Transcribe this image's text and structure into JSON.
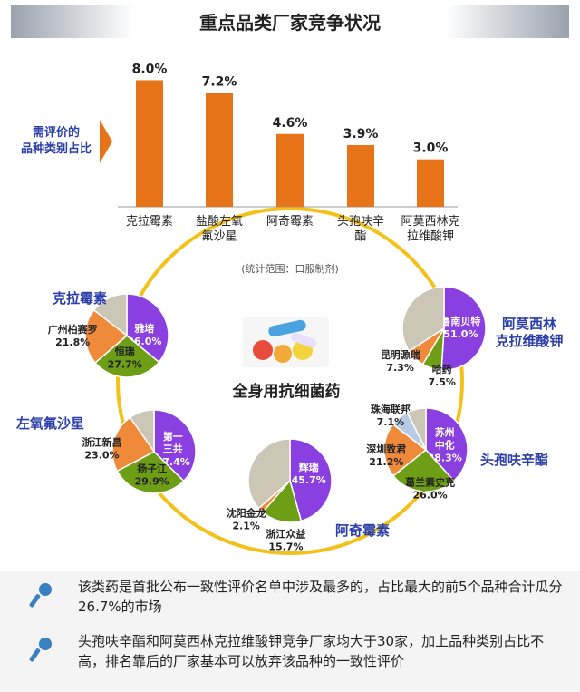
{
  "title": "重点品类厂家竞争状况",
  "side_label": [
    "需评价的",
    "品种类别占比"
  ],
  "scope_note": "(统计范围：口服制剂)",
  "center_label": "全身用抗细菌药",
  "colors": {
    "bar": "#e8741a",
    "ring": "#f2c21b",
    "purple": "#8a3fe0",
    "green": "#6e9e16",
    "orange": "#ef8a3a",
    "gray": "#cbc6b6",
    "blue": "#b8cbe6",
    "title_blue": "#2c3ea8"
  },
  "chart_data": [
    {
      "type": "bar",
      "categories": [
        "克拉霉素",
        "盐酸左氧\n氟沙星",
        "阿奇霉素",
        "头孢呋辛\n酯",
        "阿莫西林克\n拉维酸钾"
      ],
      "values": [
        8.0,
        7.2,
        4.6,
        3.9,
        3.0
      ],
      "labels": [
        "8.0%",
        "7.2%",
        "4.6%",
        "3.9%",
        "3.0%"
      ],
      "title": "",
      "xlabel": "",
      "ylabel": "",
      "ylim": [
        0,
        8.6
      ]
    },
    {
      "type": "pie",
      "title": "克拉霉素",
      "slices": [
        {
          "name": "雅培",
          "value": 36.0,
          "label": "36.0%",
          "color": "purple"
        },
        {
          "name": "恒瑞",
          "value": 27.7,
          "label": "27.7%",
          "color": "green"
        },
        {
          "name": "广州柏赛罗",
          "value": 21.8,
          "label": "21.8%",
          "color": "orange"
        },
        {
          "name": "",
          "value": 14.5,
          "label": "",
          "color": "gray"
        }
      ]
    },
    {
      "type": "pie",
      "title": "左氧氟沙星",
      "slices": [
        {
          "name": "第一\n三共",
          "value": 37.4,
          "label": "37.4%",
          "color": "purple"
        },
        {
          "name": "扬子江",
          "value": 29.9,
          "label": "29.9%",
          "color": "green"
        },
        {
          "name": "浙江新昌",
          "value": 23.0,
          "label": "23.0%",
          "color": "orange"
        },
        {
          "name": "",
          "value": 9.7,
          "label": "",
          "color": "gray"
        }
      ]
    },
    {
      "type": "pie",
      "title": "阿奇霉素",
      "slices": [
        {
          "name": "辉瑞",
          "value": 45.7,
          "label": "45.7%",
          "color": "purple"
        },
        {
          "name": "浙江众益",
          "value": 15.7,
          "label": "15.7%",
          "color": "green"
        },
        {
          "name": "沈阳金龙",
          "value": 2.1,
          "label": "2.1%",
          "color": "orange"
        },
        {
          "name": "",
          "value": 36.5,
          "label": "",
          "color": "gray"
        }
      ]
    },
    {
      "type": "pie",
      "title": "头孢呋辛酯",
      "slices": [
        {
          "name": "苏州\n中化",
          "value": 38.3,
          "label": "38.3%",
          "color": "purple"
        },
        {
          "name": "葛兰素史克",
          "value": 26.0,
          "label": "26.0%",
          "color": "green"
        },
        {
          "name": "深圳致君",
          "value": 21.2,
          "label": "21.2%",
          "color": "orange"
        },
        {
          "name": "珠海联邦",
          "value": 7.1,
          "label": "7.1%",
          "color": "blue"
        },
        {
          "name": "",
          "value": 7.4,
          "label": "",
          "color": "gray"
        }
      ]
    },
    {
      "type": "pie",
      "title": "阿莫西林\n克拉维酸钾",
      "slices": [
        {
          "name": "鲁南贝特",
          "value": 51.0,
          "label": "51.0%",
          "color": "purple"
        },
        {
          "name": "哈药",
          "value": 7.5,
          "label": "7.5%",
          "color": "green"
        },
        {
          "name": "昆明源瑞",
          "value": 7.3,
          "label": "7.3%",
          "color": "orange"
        },
        {
          "name": "",
          "value": 34.2,
          "label": "",
          "color": "gray"
        }
      ]
    }
  ],
  "notes": [
    "该类药是首批公布一致性评价名单中涉及最多的，占比最大的前5个品种合计瓜分26.7%的市场",
    "头孢呋辛酯和阿莫西林克拉维酸钾竞争厂家均大于30家，加上品种类别占比不高，排名靠后的厂家基本可以放弃该品种的一致性评价"
  ]
}
